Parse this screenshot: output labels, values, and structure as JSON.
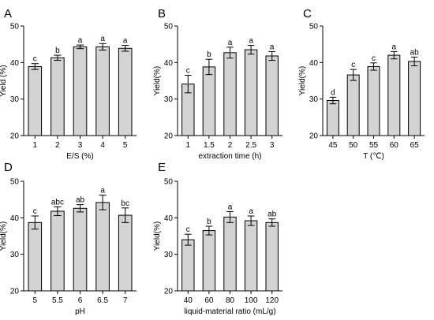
{
  "chart_data": [
    {
      "panel": "A",
      "type": "bar",
      "xlabel": "E/S (%)",
      "ylabel": "Yield (%)",
      "ylim": [
        20,
        50
      ],
      "yticks": [
        20,
        30,
        40,
        50
      ],
      "categories": [
        "1",
        "2",
        "3",
        "4",
        "5"
      ],
      "values": [
        38.9,
        41.3,
        44.3,
        44.3,
        43.9
      ],
      "errors": [
        0.8,
        0.7,
        0.5,
        0.9,
        0.8
      ],
      "letters": [
        "c",
        "b",
        "a",
        "a",
        "a"
      ]
    },
    {
      "panel": "B",
      "type": "bar",
      "xlabel": "extraction time (h)",
      "ylabel": "Yield(%)",
      "ylim": [
        20,
        50
      ],
      "yticks": [
        20,
        30,
        40,
        50
      ],
      "categories": [
        "1",
        "1.5",
        "2",
        "2.5",
        "3"
      ],
      "values": [
        34.1,
        38.8,
        42.7,
        43.5,
        41.8
      ],
      "errors": [
        2.4,
        2.1,
        1.5,
        1.2,
        1.2
      ],
      "letters": [
        "c",
        "b",
        "a",
        "a",
        "a"
      ]
    },
    {
      "panel": "C",
      "type": "bar",
      "xlabel": "T (℃)",
      "ylabel": "Yield(%)",
      "ylim": [
        20,
        50
      ],
      "yticks": [
        20,
        30,
        40,
        50
      ],
      "categories": [
        "45",
        "50",
        "55",
        "60",
        "65"
      ],
      "values": [
        29.6,
        36.6,
        38.9,
        42.0,
        40.3
      ],
      "errors": [
        0.9,
        1.5,
        1.0,
        1.0,
        1.2
      ],
      "letters": [
        "d",
        "c",
        "c",
        "a",
        "ab"
      ]
    },
    {
      "panel": "D",
      "type": "bar",
      "xlabel": "pH",
      "ylabel": "Yield(%)",
      "ylim": [
        20,
        50
      ],
      "yticks": [
        20,
        30,
        40,
        50
      ],
      "categories": [
        "5",
        "5.5",
        "6",
        "6.5",
        "7"
      ],
      "values": [
        38.7,
        41.8,
        42.6,
        44.2,
        40.7
      ],
      "errors": [
        1.8,
        1.2,
        1.0,
        2.0,
        2.0
      ],
      "letters": [
        "c",
        "abc",
        "ab",
        "a",
        "bc"
      ]
    },
    {
      "panel": "E",
      "type": "bar",
      "xlabel": "liquid-material ratio (mL/g)",
      "ylabel": "Yield(%)",
      "ylim": [
        20,
        50
      ],
      "yticks": [
        20,
        30,
        40,
        50
      ],
      "categories": [
        "40",
        "60",
        "80",
        "100",
        "120"
      ],
      "values": [
        34.0,
        36.5,
        40.2,
        39.2,
        38.7
      ],
      "errors": [
        1.5,
        1.2,
        1.5,
        1.3,
        1.0
      ],
      "letters": [
        "c",
        "b",
        "a",
        "a",
        "ab"
      ]
    }
  ],
  "colors": {
    "bar_fill": "#d3d3d3",
    "bar_stroke": "#000000",
    "axis": "#000000",
    "background": "#ffffff"
  }
}
